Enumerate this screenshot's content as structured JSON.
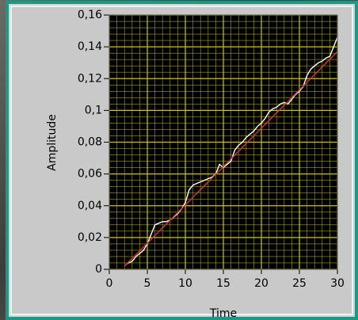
{
  "chart_data": {
    "type": "line",
    "x_label": "Time",
    "y_label": "Amplitude",
    "xlim": [
      0,
      30
    ],
    "xticks": [
      0,
      5,
      10,
      15,
      20,
      25,
      30
    ],
    "ylim": [
      0,
      0.16
    ],
    "yticks": [
      0,
      {
        "value": 0.02,
        "label": "0,02"
      },
      {
        "value": 0.04,
        "label": "0,04"
      },
      {
        "value": 0.06,
        "label": "0,06"
      },
      {
        "value": 0.08,
        "label": "0,08"
      },
      {
        "value": 0.1,
        "label": "0,1"
      },
      {
        "value": 0.12,
        "label": "0,12"
      },
      {
        "value": 0.14,
        "label": "0,14"
      },
      {
        "value": 0.16,
        "label": "0,16"
      }
    ],
    "grid": true,
    "minor_divisions": 5,
    "grid_color": "#c8c800",
    "plot_background": "#000000",
    "series": [
      {
        "color": "#ffffff",
        "x": [
          2.2,
          2.5,
          3,
          3.5,
          4,
          4.5,
          5,
          5.5,
          6,
          6.5,
          7,
          7.5,
          8,
          8.5,
          9,
          9.5,
          10,
          10.5,
          11,
          11.5,
          12,
          12.5,
          13,
          13.5,
          14,
          14.5,
          15,
          15.5,
          16,
          16.5,
          17,
          17.5,
          18,
          18.5,
          19,
          19.5,
          20,
          20.5,
          21,
          21.5,
          22,
          22.5,
          23,
          23.5,
          24,
          24.5,
          25,
          25.5,
          26,
          26.5,
          27,
          27.5,
          28,
          28.5,
          29,
          29.5,
          30
        ],
        "values": [
          0.003,
          0.004,
          0.005,
          0.008,
          0.01,
          0.012,
          0.016,
          0.022,
          0.028,
          0.029,
          0.03,
          0.03,
          0.031,
          0.033,
          0.035,
          0.038,
          0.042,
          0.05,
          0.053,
          0.054,
          0.055,
          0.056,
          0.057,
          0.058,
          0.06,
          0.066,
          0.064,
          0.066,
          0.068,
          0.075,
          0.078,
          0.08,
          0.083,
          0.085,
          0.087,
          0.09,
          0.092,
          0.095,
          0.099,
          0.101,
          0.102,
          0.104,
          0.105,
          0.104,
          0.107,
          0.11,
          0.112,
          0.115,
          0.122,
          0.126,
          0.128,
          0.13,
          0.131,
          0.133,
          0.134,
          0.14,
          0.146
        ]
      },
      {
        "color": "#e03030",
        "x": [
          2,
          30
        ],
        "values": [
          0.002,
          0.137
        ]
      }
    ]
  }
}
